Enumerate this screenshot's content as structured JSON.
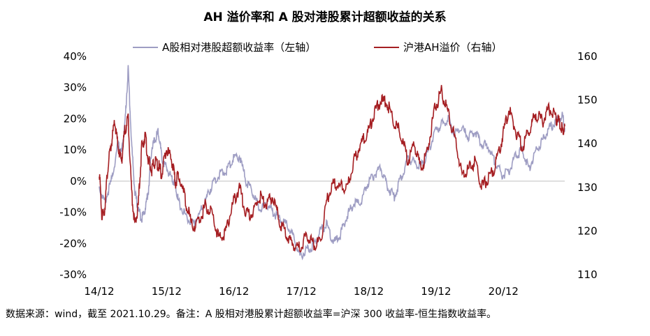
{
  "title": "AH 溢价率和 A 股对港股累计超额收益的关系",
  "note": "数据来源：wind，截至 2021.10.29。备注：A 股相对港股累计超额收益率=沪深 300 收益率-恒生指数收益率。",
  "colors": {
    "excess": "#9E9DC3",
    "ah": "#A51E22",
    "zero_line": "#BFBFBF"
  },
  "chart_data": {
    "type": "line",
    "title": "AH 溢价率和 A 股对港股累计超额收益的关系",
    "x_ticks": [
      "14/12",
      "15/12",
      "16/12",
      "17/12",
      "18/12",
      "19/12",
      "20/12"
    ],
    "left_axis": {
      "ylim": [
        -30,
        40
      ],
      "ticks": [
        "-30%",
        "-20%",
        "-10%",
        "0%",
        "10%",
        "20%",
        "30%",
        "40%"
      ]
    },
    "right_axis": {
      "ylim": [
        110,
        160
      ],
      "ticks": [
        "110",
        "120",
        "130",
        "140",
        "150",
        "160"
      ]
    },
    "legend_position": "top-center",
    "series": [
      {
        "name": "A股相对港股超额收益率（左轴）",
        "axis": "left",
        "x": [
          2014.92,
          2015.0,
          2015.1,
          2015.2,
          2015.25,
          2015.3,
          2015.35,
          2015.4,
          2015.45,
          2015.5,
          2015.55,
          2015.6,
          2015.65,
          2015.7,
          2015.75,
          2015.8,
          2015.85,
          2015.92,
          2016.0,
          2016.05,
          2016.1,
          2016.2,
          2016.3,
          2016.4,
          2016.5,
          2016.6,
          2016.7,
          2016.8,
          2016.9,
          2017.0,
          2017.1,
          2017.2,
          2017.3,
          2017.4,
          2017.5,
          2017.6,
          2017.7,
          2017.8,
          2017.9,
          2018.0,
          2018.1,
          2018.2,
          2018.3,
          2018.4,
          2018.5,
          2018.6,
          2018.7,
          2018.8,
          2018.9,
          2019.0,
          2019.1,
          2019.2,
          2019.3,
          2019.4,
          2019.5,
          2019.6,
          2019.7,
          2019.8,
          2019.9,
          2020.0,
          2020.1,
          2020.2,
          2020.3,
          2020.4,
          2020.5,
          2020.6,
          2020.7,
          2020.8,
          2020.9,
          2021.0,
          2021.1,
          2021.2,
          2021.3,
          2021.4,
          2021.5,
          2021.6,
          2021.7,
          2021.8,
          2021.83
        ],
        "values": [
          -2,
          -7,
          0,
          12,
          9,
          18,
          36,
          12,
          -4,
          -9,
          -12,
          -9,
          -3,
          11,
          13,
          16,
          7,
          4,
          1,
          -1,
          -7,
          -11,
          -14,
          -11,
          -6,
          -1,
          2,
          3,
          7,
          8,
          0,
          -4,
          -9,
          -7,
          -10,
          -12,
          -14,
          -18,
          -24,
          -22,
          -21,
          -16,
          -14,
          -20,
          -17,
          -11,
          -7,
          -7,
          -1,
          2,
          4,
          -2,
          -5,
          1,
          7,
          6,
          5,
          9,
          16,
          18,
          20,
          15,
          17,
          14,
          16,
          12,
          11,
          6,
          2,
          3,
          8,
          10,
          4,
          10,
          13,
          17,
          19,
          21,
          17
        ]
      },
      {
        "name": "沪港AH溢价（右轴）",
        "axis": "right",
        "x": [
          2014.92,
          2014.96,
          2015.0,
          2015.05,
          2015.1,
          2015.15,
          2015.2,
          2015.25,
          2015.3,
          2015.35,
          2015.4,
          2015.45,
          2015.5,
          2015.55,
          2015.6,
          2015.65,
          2015.7,
          2015.75,
          2015.8,
          2015.85,
          2015.92,
          2016.0,
          2016.05,
          2016.1,
          2016.2,
          2016.3,
          2016.4,
          2016.5,
          2016.6,
          2016.7,
          2016.8,
          2016.9,
          2017.0,
          2017.1,
          2017.2,
          2017.3,
          2017.4,
          2017.5,
          2017.6,
          2017.7,
          2017.8,
          2017.9,
          2018.0,
          2018.1,
          2018.2,
          2018.3,
          2018.4,
          2018.5,
          2018.6,
          2018.7,
          2018.8,
          2018.9,
          2019.0,
          2019.1,
          2019.2,
          2019.3,
          2019.4,
          2019.5,
          2019.6,
          2019.7,
          2019.8,
          2019.9,
          2020.0,
          2020.1,
          2020.2,
          2020.3,
          2020.4,
          2020.5,
          2020.6,
          2020.7,
          2020.8,
          2020.9,
          2021.0,
          2021.1,
          2021.2,
          2021.3,
          2021.4,
          2021.5,
          2021.6,
          2021.7,
          2021.75,
          2021.8,
          2021.83
        ],
        "values": [
          134,
          123,
          125,
          135,
          140,
          145,
          139,
          136,
          143,
          146,
          129,
          121,
          126,
          139,
          142,
          136,
          134,
          136,
          135,
          133,
          139,
          136,
          131,
          133,
          127,
          121,
          122,
          126,
          124,
          118,
          120,
          126,
          130,
          124,
          124,
          128,
          126,
          128,
          122,
          119,
          117,
          116,
          119,
          117,
          117,
          127,
          131,
          130,
          130,
          136,
          140,
          142,
          147,
          150,
          149,
          145,
          142,
          136,
          140,
          134,
          139,
          148,
          152,
          147,
          141,
          133,
          134,
          136,
          130,
          132,
          135,
          141,
          148,
          143,
          139,
          143,
          147,
          145,
          148,
          146,
          145,
          143,
          144
        ]
      }
    ]
  }
}
